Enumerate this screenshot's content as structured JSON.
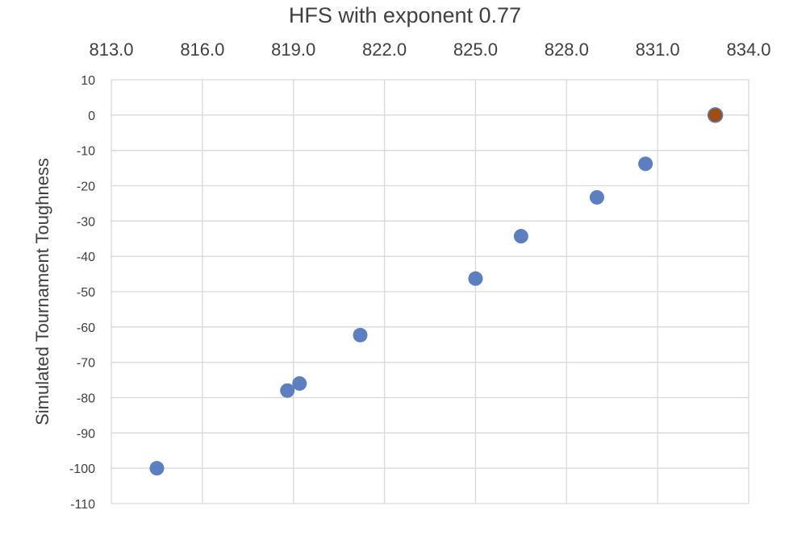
{
  "chart_data": {
    "type": "scatter",
    "title": "HFS with exponent 0.77",
    "xlabel": "",
    "ylabel": "Simulated Tournament Toughness",
    "x_axis_position": "top",
    "xlim": [
      813.0,
      834.0
    ],
    "ylim": [
      -110,
      10
    ],
    "x_ticks": [
      "813.0",
      "816.0",
      "819.0",
      "822.0",
      "825.0",
      "828.0",
      "831.0",
      "834.0"
    ],
    "y_ticks": [
      "10",
      "0",
      "-10",
      "-20",
      "-30",
      "-40",
      "-50",
      "-60",
      "-70",
      "-80",
      "-90",
      "-100",
      "-110"
    ],
    "grid": true,
    "legend": "none",
    "series": [
      {
        "color": "#5B7FBF",
        "points": [
          {
            "x": 814.5,
            "y": -100
          },
          {
            "x": 818.8,
            "y": -78
          },
          {
            "x": 819.2,
            "y": -76
          },
          {
            "x": 821.2,
            "y": -62.3
          },
          {
            "x": 825.0,
            "y": -46.3
          },
          {
            "x": 826.5,
            "y": -34.3
          },
          {
            "x": 829.0,
            "y": -23.3
          },
          {
            "x": 830.6,
            "y": -13.8
          }
        ]
      },
      {
        "color": "#9C4E13",
        "points": [
          {
            "x": 832.9,
            "y": 0
          }
        ]
      }
    ]
  }
}
